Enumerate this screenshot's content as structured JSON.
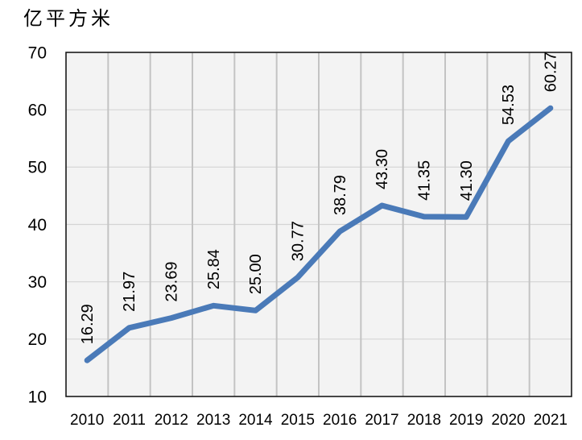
{
  "chart_data": {
    "type": "line",
    "unit_label": "亿平方米",
    "categories": [
      "2010",
      "2011",
      "2012",
      "2013",
      "2014",
      "2015",
      "2016",
      "2017",
      "2018",
      "2019",
      "2020",
      "2021"
    ],
    "values": [
      16.29,
      21.97,
      23.69,
      25.84,
      25.0,
      30.77,
      38.79,
      43.3,
      41.35,
      41.3,
      54.53,
      60.27
    ],
    "data_labels": [
      "16.29",
      "21.97",
      "23.69",
      "25.84",
      "25.00",
      "30.77",
      "38.79",
      "43.30",
      "41.35",
      "41.30",
      "54.53",
      "60.27"
    ],
    "y_ticks": [
      10,
      20,
      30,
      40,
      50,
      60,
      70
    ],
    "ylim": [
      10,
      70
    ],
    "xlabel": "",
    "ylabel": "",
    "grid": "on",
    "legend": "none",
    "colors": {
      "line": "#4a7ab8",
      "plot_background": "#f3f3f3",
      "grid_vertical": "#c3c3c3",
      "grid_horizontal": "#d4d4d4",
      "plot_border": "#1a1a1a",
      "label_text": "#000000"
    }
  }
}
